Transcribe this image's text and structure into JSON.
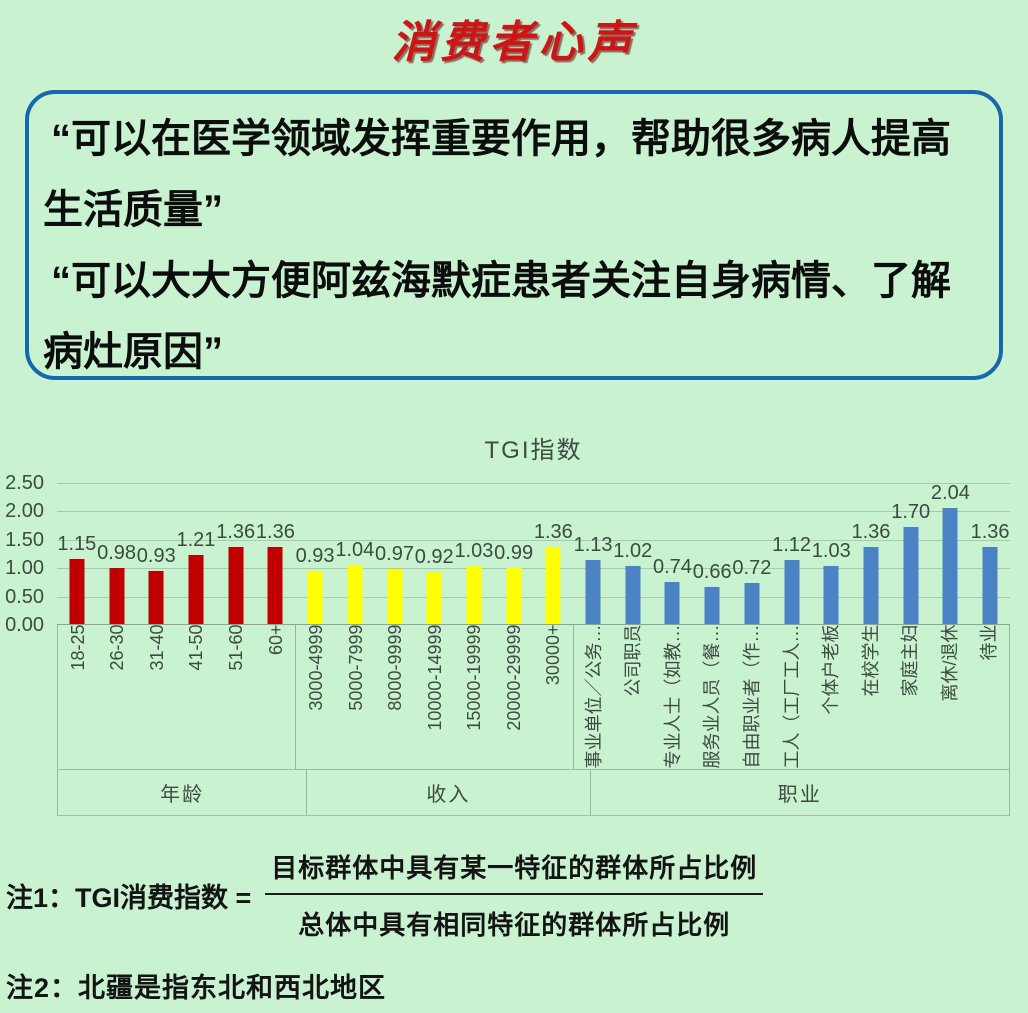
{
  "page": {
    "title": "消费者心声"
  },
  "quote_box": {
    "quotes": [
      "“可以在医学领域发挥重要作用，帮助很多病人提高生活质量”",
      "“可以大大方便阿兹海默症患者关注自身病情、了解病灶原因”"
    ]
  },
  "chart_data": {
    "type": "bar",
    "title": "TGI指数",
    "ylim": [
      0,
      2.5
    ],
    "yticks": [
      "2.50",
      "2.00",
      "1.50",
      "1.00",
      "0.50",
      "0.00"
    ],
    "grid": true,
    "legend": false,
    "groups": [
      {
        "label": "年龄",
        "color": "#c00000",
        "categories": [
          "18-25",
          "26-30",
          "31-40",
          "41-50",
          "51-60",
          "60+"
        ],
        "values": [
          1.15,
          0.98,
          0.93,
          1.21,
          1.36,
          1.36
        ]
      },
      {
        "label": "收入",
        "color": "#ffff00",
        "categories": [
          "3000-4999",
          "5000-7999",
          "8000-9999",
          "10000-14999",
          "15000-19999",
          "20000-29999",
          "30000+"
        ],
        "values": [
          0.93,
          1.04,
          0.97,
          0.92,
          1.03,
          0.99,
          1.36
        ]
      },
      {
        "label": "职业",
        "color": "#4a82c4",
        "categories": [
          "事业单位／公务…",
          "公司职员",
          "专业人士（如教…",
          "服务业人员（餐…",
          "自由职业者（作…",
          "工人（工厂工人…",
          "个体户老板",
          "在校学生",
          "家庭主妇",
          "离休/退休",
          "待业"
        ],
        "values": [
          1.13,
          1.02,
          0.74,
          0.66,
          0.72,
          1.12,
          1.03,
          1.36,
          1.7,
          2.04,
          1.36
        ]
      }
    ]
  },
  "notes": {
    "note1_label": "注1：TGI消费指数 =",
    "fraction_numerator": "目标群体中具有某一特征的群体所占比例",
    "fraction_denominator": "总体中具有相同特征的群体所占比例",
    "note2": "注2：北疆是指东北和西北地区"
  },
  "colors": {
    "background": "#c9f2d1",
    "quote_border": "#1767ad",
    "title_red": "#ce1515",
    "age_bars": "#c00000",
    "income_bars": "#ffff00",
    "occupation_bars": "#4a82c4"
  }
}
